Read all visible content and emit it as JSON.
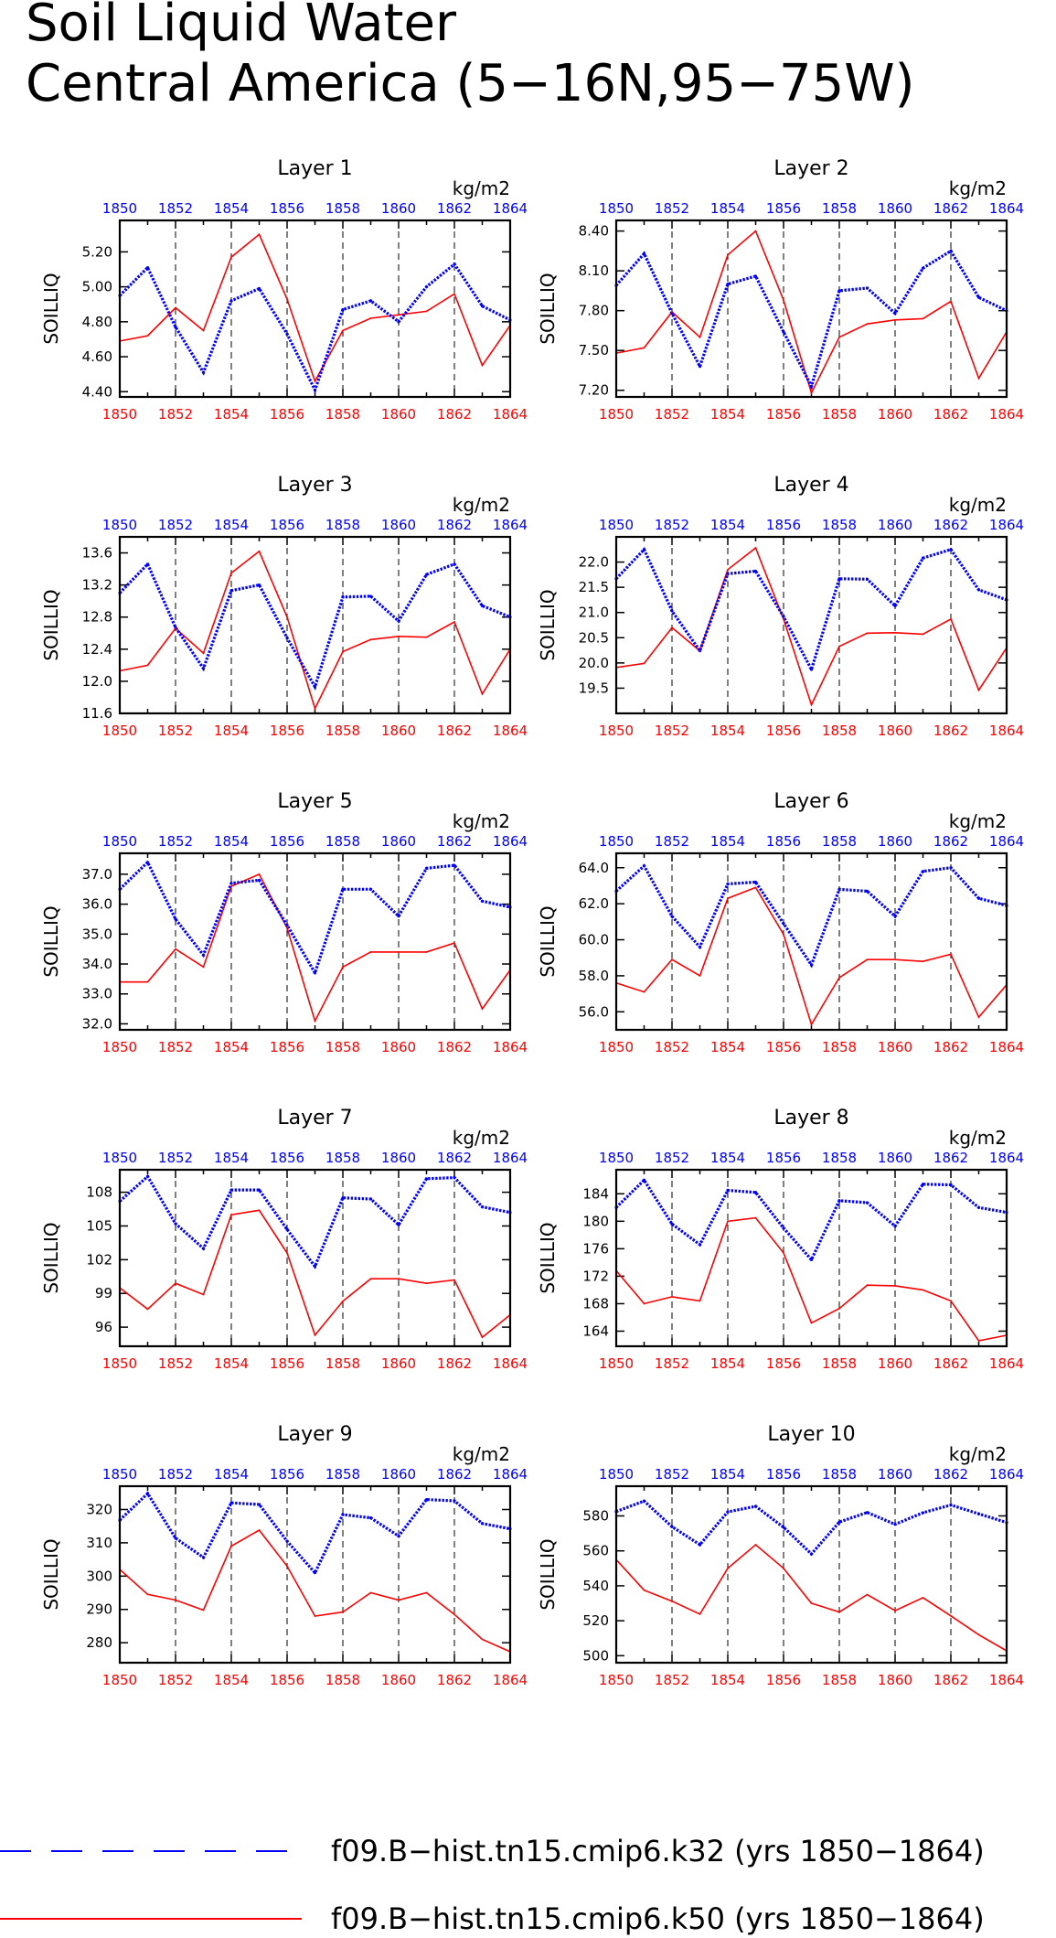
{
  "title_lines": [
    "Soil Liquid Water",
    "Central America (5−16N,95−75W)"
  ],
  "legend": [
    {
      "label": "f09.B−hist.tn15.cmip6.k32 (yrs 1850−1864)",
      "color": "#0000ff",
      "style": "dashed"
    },
    {
      "label": "f09.B−hist.tn15.cmip6.k50 (yrs 1850−1864)",
      "color": "#ff0000",
      "style": "solid"
    }
  ],
  "colors": {
    "series1": "#0000ff",
    "series2": "#ff0000",
    "axis": "#000000"
  },
  "chart_data": [
    {
      "type": "line",
      "title": "Layer 1",
      "ylabel": "SOILLIQ",
      "unit": "kg/m2",
      "x": [
        1850,
        1851,
        1852,
        1853,
        1854,
        1855,
        1856,
        1857,
        1858,
        1859,
        1860,
        1861,
        1862,
        1863,
        1864
      ],
      "top_ticks": [
        "1850",
        "1852",
        "1854",
        "1856",
        "1858",
        "1860",
        "1862",
        "1864"
      ],
      "bottom_ticks": [
        "1850",
        "1852",
        "1854",
        "1856",
        "1858",
        "1860",
        "1862",
        "1864"
      ],
      "ylim": [
        4.37,
        5.38
      ],
      "yticks": [
        4.4,
        4.6,
        4.8,
        5.0,
        5.2
      ],
      "ytick_labels": [
        "4.40",
        "4.60",
        "4.80",
        "5.00",
        "5.20"
      ],
      "series": [
        {
          "values": [
            4.95,
            5.11,
            4.77,
            4.51,
            4.92,
            4.99,
            4.73,
            4.41,
            4.87,
            4.92,
            4.8,
            5.0,
            5.13,
            4.89,
            4.81
          ]
        },
        {
          "values": [
            4.69,
            4.72,
            4.88,
            4.75,
            5.17,
            5.3,
            4.93,
            4.46,
            4.75,
            4.82,
            4.84,
            4.86,
            4.96,
            4.55,
            4.78
          ]
        }
      ]
    },
    {
      "type": "line",
      "title": "Layer 2",
      "ylabel": "SOILLIQ",
      "unit": "kg/m2",
      "x": [
        1850,
        1851,
        1852,
        1853,
        1854,
        1855,
        1856,
        1857,
        1858,
        1859,
        1860,
        1861,
        1862,
        1863,
        1864
      ],
      "top_ticks": [
        "1850",
        "1852",
        "1854",
        "1856",
        "1858",
        "1860",
        "1862",
        "1864"
      ],
      "bottom_ticks": [
        "1850",
        "1852",
        "1854",
        "1856",
        "1858",
        "1860",
        "1862",
        "1864"
      ],
      "ylim": [
        7.15,
        8.48
      ],
      "yticks": [
        7.2,
        7.5,
        7.8,
        8.1,
        8.4
      ],
      "ytick_labels": [
        "7.20",
        "7.50",
        "7.80",
        "8.10",
        "8.40"
      ],
      "series": [
        {
          "values": [
            7.99,
            8.23,
            7.78,
            7.38,
            8.0,
            8.06,
            7.64,
            7.23,
            7.95,
            7.97,
            7.78,
            8.12,
            8.25,
            7.9,
            7.8
          ]
        },
        {
          "values": [
            7.48,
            7.52,
            7.79,
            7.6,
            8.22,
            8.4,
            7.88,
            7.18,
            7.6,
            7.7,
            7.73,
            7.74,
            7.87,
            7.29,
            7.64
          ]
        }
      ]
    },
    {
      "type": "line",
      "title": "Layer 3",
      "ylabel": "SOILLIQ",
      "unit": "kg/m2",
      "x": [
        1850,
        1851,
        1852,
        1853,
        1854,
        1855,
        1856,
        1857,
        1858,
        1859,
        1860,
        1861,
        1862,
        1863,
        1864
      ],
      "top_ticks": [
        "1850",
        "1852",
        "1854",
        "1856",
        "1858",
        "1860",
        "1862",
        "1864"
      ],
      "bottom_ticks": [
        "1850",
        "1852",
        "1854",
        "1856",
        "1858",
        "1860",
        "1862",
        "1864"
      ],
      "ylim": [
        11.6,
        13.8
      ],
      "yticks": [
        11.6,
        12.0,
        12.4,
        12.8,
        13.2,
        13.6
      ],
      "ytick_labels": [
        "11.6",
        "12.0",
        "12.4",
        "12.8",
        "13.2",
        "13.6"
      ],
      "series": [
        {
          "values": [
            13.1,
            13.46,
            12.67,
            12.16,
            13.13,
            13.2,
            12.54,
            11.93,
            13.05,
            13.06,
            12.75,
            13.33,
            13.46,
            12.94,
            12.8
          ]
        },
        {
          "values": [
            12.13,
            12.2,
            12.66,
            12.35,
            13.35,
            13.62,
            12.8,
            11.66,
            12.37,
            12.52,
            12.56,
            12.55,
            12.74,
            11.84,
            12.4
          ]
        }
      ]
    },
    {
      "type": "line",
      "title": "Layer 4",
      "ylabel": "SOILLIQ",
      "unit": "kg/m2",
      "x": [
        1850,
        1851,
        1852,
        1853,
        1854,
        1855,
        1856,
        1857,
        1858,
        1859,
        1860,
        1861,
        1862,
        1863,
        1864
      ],
      "top_ticks": [
        "1850",
        "1852",
        "1854",
        "1856",
        "1858",
        "1860",
        "1862",
        "1864"
      ],
      "bottom_ticks": [
        "1850",
        "1852",
        "1854",
        "1856",
        "1858",
        "1860",
        "1862",
        "1864"
      ],
      "ylim": [
        19.0,
        22.5
      ],
      "yticks": [
        19.5,
        20.0,
        20.5,
        21.0,
        21.5,
        22.0
      ],
      "ytick_labels": [
        "19.5",
        "20.0",
        "20.5",
        "21.0",
        "21.5",
        "22.0"
      ],
      "series": [
        {
          "values": [
            21.67,
            22.25,
            21.03,
            20.24,
            21.77,
            21.82,
            20.92,
            19.87,
            21.67,
            21.66,
            21.13,
            22.08,
            22.25,
            21.45,
            21.25
          ]
        },
        {
          "values": [
            19.91,
            19.99,
            20.7,
            20.24,
            21.85,
            22.28,
            20.87,
            19.17,
            20.33,
            20.59,
            20.6,
            20.57,
            20.87,
            19.46,
            20.3
          ]
        }
      ]
    },
    {
      "type": "line",
      "title": "Layer 5",
      "ylabel": "SOILLIQ",
      "unit": "kg/m2",
      "x": [
        1850,
        1851,
        1852,
        1853,
        1854,
        1855,
        1856,
        1857,
        1858,
        1859,
        1860,
        1861,
        1862,
        1863,
        1864
      ],
      "top_ticks": [
        "1850",
        "1852",
        "1854",
        "1856",
        "1858",
        "1860",
        "1862",
        "1864"
      ],
      "bottom_ticks": [
        "1850",
        "1852",
        "1854",
        "1856",
        "1858",
        "1860",
        "1862",
        "1864"
      ],
      "ylim": [
        31.8,
        37.7
      ],
      "yticks": [
        32.0,
        33.0,
        34.0,
        35.0,
        36.0,
        37.0
      ],
      "ytick_labels": [
        "32.0",
        "33.0",
        "34.0",
        "35.0",
        "36.0",
        "37.0"
      ],
      "series": [
        {
          "values": [
            36.5,
            37.4,
            35.5,
            34.3,
            36.7,
            36.8,
            35.3,
            33.7,
            36.5,
            36.5,
            35.6,
            37.2,
            37.3,
            36.1,
            35.9
          ]
        },
        {
          "values": [
            33.4,
            33.4,
            34.5,
            33.9,
            36.6,
            37.0,
            35.2,
            32.1,
            33.9,
            34.4,
            34.4,
            34.4,
            34.7,
            32.5,
            33.8
          ]
        }
      ]
    },
    {
      "type": "line",
      "title": "Layer 6",
      "ylabel": "SOILLIQ",
      "unit": "kg/m2",
      "x": [
        1850,
        1851,
        1852,
        1853,
        1854,
        1855,
        1856,
        1857,
        1858,
        1859,
        1860,
        1861,
        1862,
        1863,
        1864
      ],
      "top_ticks": [
        "1850",
        "1852",
        "1854",
        "1856",
        "1858",
        "1860",
        "1862",
        "1864"
      ],
      "bottom_ticks": [
        "1850",
        "1852",
        "1854",
        "1856",
        "1858",
        "1860",
        "1862",
        "1864"
      ],
      "ylim": [
        55.0,
        64.8
      ],
      "yticks": [
        56.0,
        58.0,
        60.0,
        62.0,
        64.0
      ],
      "ytick_labels": [
        "56.0",
        "58.0",
        "60.0",
        "62.0",
        "64.0"
      ],
      "series": [
        {
          "values": [
            62.7,
            64.1,
            61.3,
            59.6,
            63.1,
            63.2,
            60.9,
            58.6,
            62.8,
            62.7,
            61.3,
            63.8,
            64.0,
            62.3,
            61.9
          ]
        },
        {
          "values": [
            57.6,
            57.1,
            58.9,
            58.0,
            62.3,
            62.9,
            60.3,
            55.3,
            57.9,
            58.9,
            58.9,
            58.8,
            59.2,
            55.7,
            57.5
          ]
        }
      ]
    },
    {
      "type": "line",
      "title": "Layer 7",
      "ylabel": "SOILLIQ",
      "unit": "kg/m2",
      "x": [
        1850,
        1851,
        1852,
        1853,
        1854,
        1855,
        1856,
        1857,
        1858,
        1859,
        1860,
        1861,
        1862,
        1863,
        1864
      ],
      "top_ticks": [
        "1850",
        "1852",
        "1854",
        "1856",
        "1858",
        "1860",
        "1862",
        "1864"
      ],
      "bottom_ticks": [
        "1850",
        "1852",
        "1854",
        "1856",
        "1858",
        "1860",
        "1862",
        "1864"
      ],
      "ylim": [
        94.3,
        110.0
      ],
      "yticks": [
        96,
        99,
        102,
        105,
        108
      ],
      "ytick_labels": [
        "96",
        "99",
        "102",
        "105",
        "108"
      ],
      "series": [
        {
          "values": [
            107.2,
            109.4,
            105.2,
            103.0,
            108.2,
            108.2,
            104.7,
            101.4,
            107.5,
            107.4,
            105.1,
            109.2,
            109.3,
            106.7,
            106.2
          ]
        },
        {
          "values": [
            99.5,
            97.6,
            99.9,
            98.9,
            106.0,
            106.4,
            102.6,
            95.3,
            98.3,
            100.3,
            100.3,
            99.9,
            100.2,
            95.1,
            97.1
          ]
        }
      ]
    },
    {
      "type": "line",
      "title": "Layer 8",
      "ylabel": "SOILLIQ",
      "unit": "kg/m2",
      "x": [
        1850,
        1851,
        1852,
        1853,
        1854,
        1855,
        1856,
        1857,
        1858,
        1859,
        1860,
        1861,
        1862,
        1863,
        1864
      ],
      "top_ticks": [
        "1850",
        "1852",
        "1854",
        "1856",
        "1858",
        "1860",
        "1862",
        "1864"
      ],
      "bottom_ticks": [
        "1850",
        "1852",
        "1854",
        "1856",
        "1858",
        "1860",
        "1862",
        "1864"
      ],
      "ylim": [
        161.8,
        187.5
      ],
      "yticks": [
        164,
        168,
        172,
        176,
        180,
        184
      ],
      "ytick_labels": [
        "164",
        "168",
        "172",
        "176",
        "180",
        "184"
      ],
      "series": [
        {
          "values": [
            182.0,
            186.0,
            179.6,
            176.6,
            184.5,
            184.2,
            179.0,
            174.4,
            183.0,
            182.7,
            179.3,
            185.4,
            185.3,
            182.0,
            181.3
          ]
        },
        {
          "values": [
            172.8,
            168.0,
            169.0,
            168.4,
            180.0,
            180.5,
            175.4,
            165.2,
            167.3,
            170.7,
            170.6,
            170.0,
            168.4,
            162.6,
            163.4
          ]
        }
      ]
    },
    {
      "type": "line",
      "title": "Layer 9",
      "ylabel": "SOILLIQ",
      "unit": "kg/m2",
      "x": [
        1850,
        1851,
        1852,
        1853,
        1854,
        1855,
        1856,
        1857,
        1858,
        1859,
        1860,
        1861,
        1862,
        1863,
        1864
      ],
      "top_ticks": [
        "1850",
        "1852",
        "1854",
        "1856",
        "1858",
        "1860",
        "1862",
        "1864"
      ],
      "bottom_ticks": [
        "1850",
        "1852",
        "1854",
        "1856",
        "1858",
        "1860",
        "1862",
        "1864"
      ],
      "ylim": [
        274,
        327
      ],
      "yticks": [
        280,
        290,
        300,
        310,
        320
      ],
      "ytick_labels": [
        "280",
        "290",
        "300",
        "310",
        "320"
      ],
      "series": [
        {
          "values": [
            316.8,
            324.8,
            311.4,
            305.6,
            322.0,
            321.5,
            310.5,
            301.0,
            318.5,
            317.5,
            312.0,
            323.0,
            322.6,
            315.8,
            314.2
          ]
        },
        {
          "values": [
            302.0,
            294.5,
            292.8,
            289.8,
            309.0,
            313.8,
            303.0,
            288.0,
            289.2,
            295.0,
            292.8,
            295.0,
            288.5,
            281.0,
            277.3
          ]
        }
      ]
    },
    {
      "type": "line",
      "title": "Layer 10",
      "ylabel": "SOILLIQ",
      "unit": "kg/m2",
      "x": [
        1850,
        1851,
        1852,
        1853,
        1854,
        1855,
        1856,
        1857,
        1858,
        1859,
        1860,
        1861,
        1862,
        1863,
        1864
      ],
      "top_ticks": [
        "1850",
        "1852",
        "1854",
        "1856",
        "1858",
        "1860",
        "1862",
        "1864"
      ],
      "bottom_ticks": [
        "1850",
        "1852",
        "1854",
        "1856",
        "1858",
        "1860",
        "1862",
        "1864"
      ],
      "ylim": [
        496,
        597
      ],
      "yticks": [
        500,
        520,
        540,
        560,
        580
      ],
      "ytick_labels": [
        "500",
        "520",
        "540",
        "560",
        "580"
      ],
      "series": [
        {
          "values": [
            582.5,
            588.5,
            573.8,
            563.5,
            582.3,
            585.5,
            573.5,
            558.2,
            576.5,
            582.0,
            575.2,
            581.8,
            586.2,
            581.2,
            576.2
          ]
        },
        {
          "values": [
            555.0,
            537.5,
            531.2,
            523.8,
            550.0,
            563.5,
            550.0,
            530.0,
            525.0,
            535.0,
            525.8,
            533.2,
            522.8,
            512.0,
            502.8
          ]
        }
      ]
    }
  ]
}
